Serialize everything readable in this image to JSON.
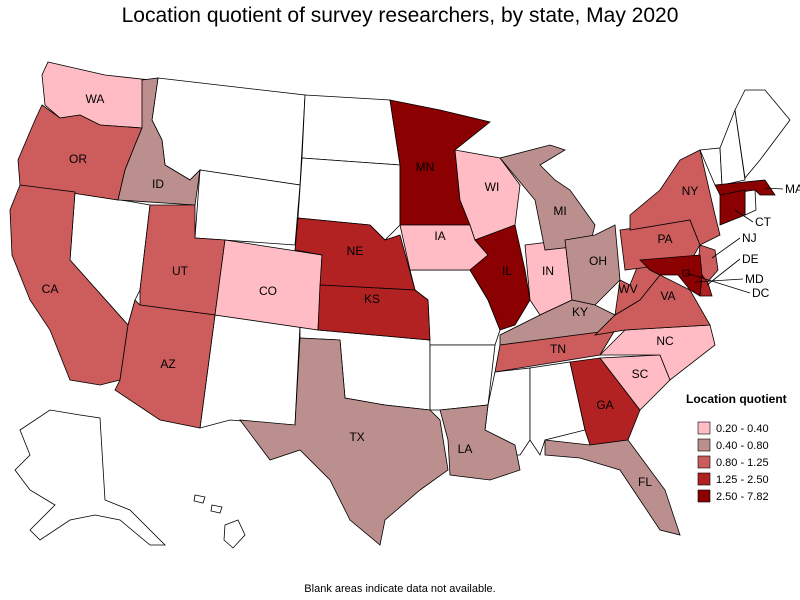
{
  "title": "Location quotient of survey researchers, by state, May 2020",
  "footnote": "Blank areas indicate data not available.",
  "legend": {
    "title": "Location quotient",
    "items": [
      {
        "label": "0.20 - 0.40",
        "color": "#ffbcc4"
      },
      {
        "label": "0.40 - 0.80",
        "color": "#bc8f8f"
      },
      {
        "label": "0.80 - 1.25",
        "color": "#cd5c5c"
      },
      {
        "label": "1.25 - 2.50",
        "color": "#b22222"
      },
      {
        "label": "2.50 - 7.82",
        "color": "#8b0000"
      }
    ]
  },
  "states": [
    {
      "abbr": "WA",
      "class": 0
    },
    {
      "abbr": "OR",
      "class": 2
    },
    {
      "abbr": "CA",
      "class": 2
    },
    {
      "abbr": "ID",
      "class": 1
    },
    {
      "abbr": "UT",
      "class": 2
    },
    {
      "abbr": "AZ",
      "class": 2
    },
    {
      "abbr": "CO",
      "class": 0
    },
    {
      "abbr": "NE",
      "class": 3
    },
    {
      "abbr": "KS",
      "class": 3
    },
    {
      "abbr": "MN",
      "class": 4
    },
    {
      "abbr": "IA",
      "class": 0
    },
    {
      "abbr": "WI",
      "class": 0
    },
    {
      "abbr": "IL",
      "class": 4
    },
    {
      "abbr": "IN",
      "class": 0
    },
    {
      "abbr": "MI",
      "class": 1
    },
    {
      "abbr": "OH",
      "class": 1
    },
    {
      "abbr": "KY",
      "class": 1
    },
    {
      "abbr": "TN",
      "class": 2
    },
    {
      "abbr": "GA",
      "class": 3
    },
    {
      "abbr": "FL",
      "class": 1
    },
    {
      "abbr": "SC",
      "class": 0
    },
    {
      "abbr": "NC",
      "class": 0
    },
    {
      "abbr": "VA",
      "class": 2
    },
    {
      "abbr": "WV",
      "class": 2
    },
    {
      "abbr": "PA",
      "class": 2
    },
    {
      "abbr": "NY",
      "class": 2
    },
    {
      "abbr": "TX",
      "class": 1
    },
    {
      "abbr": "LA",
      "class": 1
    },
    {
      "abbr": "MA",
      "class": 4
    },
    {
      "abbr": "CT",
      "class": 4
    },
    {
      "abbr": "NJ",
      "class": 2
    },
    {
      "abbr": "DE",
      "class": 3
    },
    {
      "abbr": "MD",
      "class": 4
    },
    {
      "abbr": "DC",
      "class": 4
    }
  ]
}
